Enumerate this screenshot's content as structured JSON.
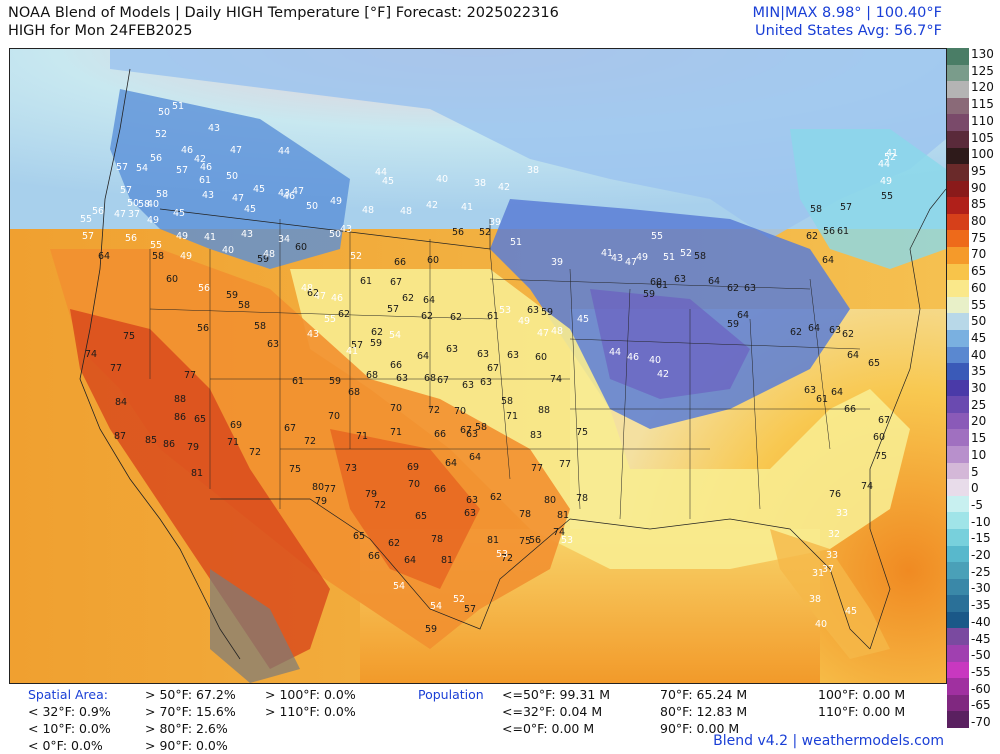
{
  "header": {
    "title_line1": "NOAA Blend of Models | Daily HIGH Temperature [°F] Forecast: 2025022316",
    "title_line2": "HIGH for Mon 24FEB2025",
    "minmax": "MIN|MAX 8.98° | 100.40°F",
    "avg": "United States Avg: 56.7°F"
  },
  "colorbar": {
    "labels": [
      "130",
      "125",
      "120",
      "115",
      "110",
      "105",
      "100",
      "95",
      "90",
      "85",
      "80",
      "75",
      "70",
      "65",
      "60",
      "55",
      "50",
      "45",
      "40",
      "35",
      "30",
      "25",
      "20",
      "15",
      "10",
      "5",
      "0",
      "-5",
      "-10",
      "-15",
      "-20",
      "-25",
      "-30",
      "-35",
      "-40",
      "-45",
      "-50",
      "-55",
      "-60",
      "-65",
      "-70"
    ],
    "colors": [
      "#4a7d66",
      "#7a9c8b",
      "#b4b4b4",
      "#8a6a78",
      "#7a4a6a",
      "#5a2a3a",
      "#2e1a1a",
      "#6a2a2a",
      "#8a1a1a",
      "#b0201a",
      "#d6401a",
      "#ee6a1a",
      "#f59a2a",
      "#f8c44a",
      "#fae88a",
      "#e8f0c8",
      "#b8d8e8",
      "#7ab0e0",
      "#5a88d0",
      "#3a5ab8",
      "#4a3aa8",
      "#6a4ab0",
      "#8a5ab8",
      "#a070c0",
      "#b890cc",
      "#d4b8d8",
      "#e8dcea",
      "#c8f0f0",
      "#a0e4e8",
      "#78d0dc",
      "#58b8cc",
      "#4aa0b8",
      "#3a88a8",
      "#2a7098",
      "#1a5888",
      "#7a4aa0",
      "#a040b0",
      "#c838c0",
      "#a030a0",
      "#802880",
      "#5a2060"
    ]
  },
  "icons": {
    "map": "temperature-map",
    "legend": "color-scale-bar"
  },
  "map_labels": [
    {
      "t": "51",
      "c": "cold"
    },
    {
      "t": "50",
      "c": "cold"
    },
    {
      "t": "52",
      "c": "cold"
    },
    {
      "t": "43",
      "c": "cold"
    },
    {
      "t": "46",
      "c": "cold"
    },
    {
      "t": "42",
      "c": "cold"
    },
    {
      "t": "47",
      "c": "cold"
    },
    {
      "t": "44",
      "c": "cold"
    },
    {
      "t": "46",
      "c": "cold"
    },
    {
      "t": "56",
      "c": "cold"
    },
    {
      "t": "57",
      "c": "cold"
    },
    {
      "t": "54",
      "c": "cold"
    },
    {
      "t": "57",
      "c": "cold"
    },
    {
      "t": "61",
      "c": "cold"
    },
    {
      "t": "50",
      "c": "cold"
    },
    {
      "t": "47",
      "c": "cold"
    },
    {
      "t": "45",
      "c": "cold"
    },
    {
      "t": "43",
      "c": "cold"
    },
    {
      "t": "47",
      "c": "cold"
    },
    {
      "t": "44",
      "c": "cold"
    },
    {
      "t": "45",
      "c": "cold"
    },
    {
      "t": "40",
      "c": "cold"
    },
    {
      "t": "38",
      "c": "cold"
    },
    {
      "t": "42",
      "c": "cold"
    },
    {
      "t": "38",
      "c": "cold"
    },
    {
      "t": "57",
      "c": "cold"
    },
    {
      "t": "58",
      "c": "cold"
    },
    {
      "t": "49",
      "c": "cold"
    },
    {
      "t": "56",
      "c": "cold"
    },
    {
      "t": "47",
      "c": "cold"
    },
    {
      "t": "50",
      "c": "cold"
    },
    {
      "t": "40",
      "c": "cold"
    },
    {
      "t": "45",
      "c": "cold"
    },
    {
      "t": "43",
      "c": "cold"
    },
    {
      "t": "45",
      "c": "cold"
    },
    {
      "t": "46",
      "c": "cold"
    },
    {
      "t": "50",
      "c": "cold"
    },
    {
      "t": "49",
      "c": "cold"
    },
    {
      "t": "43",
      "c": "cold"
    },
    {
      "t": "48",
      "c": "cold"
    },
    {
      "t": "48",
      "c": "cold"
    },
    {
      "t": "42",
      "c": "cold"
    },
    {
      "t": "41",
      "c": "cold"
    },
    {
      "t": "39",
      "c": "cold"
    },
    {
      "t": "55",
      "c": "cold"
    },
    {
      "t": "57",
      "c": "cold"
    },
    {
      "t": "58",
      "c": "cold"
    },
    {
      "t": "37",
      "c": "cold"
    },
    {
      "t": "56",
      "c": "cold"
    },
    {
      "t": "55",
      "c": "cold"
    },
    {
      "t": "49",
      "c": "cold"
    },
    {
      "t": "60",
      "c": ""
    },
    {
      "t": "41",
      "c": "cold"
    },
    {
      "t": "43",
      "c": "cold"
    },
    {
      "t": "34",
      "c": "cold"
    },
    {
      "t": "50",
      "c": "cold"
    },
    {
      "t": "56",
      "c": ""
    },
    {
      "t": "52",
      "c": ""
    },
    {
      "t": "51",
      "c": "cold"
    },
    {
      "t": "59",
      "c": ""
    },
    {
      "t": "64",
      "c": ""
    },
    {
      "t": "58",
      "c": ""
    },
    {
      "t": "49",
      "c": "cold"
    },
    {
      "t": "40",
      "c": "cold"
    },
    {
      "t": "48",
      "c": "cold"
    },
    {
      "t": "60",
      "c": ""
    },
    {
      "t": "52",
      "c": "cold"
    },
    {
      "t": "66",
      "c": ""
    },
    {
      "t": "60",
      "c": ""
    },
    {
      "t": "56",
      "c": "cold"
    },
    {
      "t": "59",
      "c": ""
    },
    {
      "t": "58",
      "c": ""
    },
    {
      "t": "62",
      "c": ""
    },
    {
      "t": "61",
      "c": ""
    },
    {
      "t": "67",
      "c": ""
    },
    {
      "t": "62",
      "c": ""
    },
    {
      "t": "64",
      "c": ""
    },
    {
      "t": "62",
      "c": ""
    },
    {
      "t": "48",
      "c": "cold"
    },
    {
      "t": "47",
      "c": "cold"
    },
    {
      "t": "46",
      "c": "cold"
    },
    {
      "t": "55",
      "c": "cold"
    },
    {
      "t": "57",
      "c": ""
    },
    {
      "t": "62",
      "c": ""
    },
    {
      "t": "61",
      "c": ""
    },
    {
      "t": "59",
      "c": ""
    },
    {
      "t": "63",
      "c": ""
    },
    {
      "t": "75",
      "c": ""
    },
    {
      "t": "56",
      "c": ""
    },
    {
      "t": "58",
      "c": ""
    },
    {
      "t": "43",
      "c": "cold"
    },
    {
      "t": "62",
      "c": ""
    },
    {
      "t": "62",
      "c": ""
    },
    {
      "t": "57",
      "c": ""
    },
    {
      "t": "59",
      "c": ""
    },
    {
      "t": "54",
      "c": "cold"
    },
    {
      "t": "66",
      "c": ""
    },
    {
      "t": "63",
      "c": ""
    },
    {
      "t": "63",
      "c": ""
    },
    {
      "t": "41",
      "c": "cold"
    },
    {
      "t": "63",
      "c": ""
    },
    {
      "t": "64",
      "c": ""
    },
    {
      "t": "63",
      "c": ""
    },
    {
      "t": "67",
      "c": ""
    },
    {
      "t": "63",
      "c": ""
    },
    {
      "t": "60",
      "c": ""
    },
    {
      "t": "74",
      "c": ""
    },
    {
      "t": "77",
      "c": ""
    },
    {
      "t": "77",
      "c": ""
    },
    {
      "t": "61",
      "c": ""
    },
    {
      "t": "59",
      "c": ""
    },
    {
      "t": "68",
      "c": ""
    },
    {
      "t": "68",
      "c": ""
    },
    {
      "t": "68",
      "c": ""
    },
    {
      "t": "67",
      "c": ""
    },
    {
      "t": "63",
      "c": ""
    },
    {
      "t": "63",
      "c": ""
    },
    {
      "t": "58",
      "c": ""
    },
    {
      "t": "74",
      "c": ""
    },
    {
      "t": "84",
      "c": ""
    },
    {
      "t": "88",
      "c": ""
    },
    {
      "t": "86",
      "c": ""
    },
    {
      "t": "65",
      "c": ""
    },
    {
      "t": "69",
      "c": ""
    },
    {
      "t": "67",
      "c": ""
    },
    {
      "t": "70",
      "c": ""
    },
    {
      "t": "70",
      "c": ""
    },
    {
      "t": "72",
      "c": ""
    },
    {
      "t": "70",
      "c": ""
    },
    {
      "t": "67",
      "c": ""
    },
    {
      "t": "58",
      "c": ""
    },
    {
      "t": "71",
      "c": ""
    },
    {
      "t": "88",
      "c": ""
    },
    {
      "t": "87",
      "c": ""
    },
    {
      "t": "85",
      "c": ""
    },
    {
      "t": "86",
      "c": ""
    },
    {
      "t": "79",
      "c": ""
    },
    {
      "t": "71",
      "c": ""
    },
    {
      "t": "72",
      "c": ""
    },
    {
      "t": "72",
      "c": ""
    },
    {
      "t": "71",
      "c": ""
    },
    {
      "t": "71",
      "c": ""
    },
    {
      "t": "66",
      "c": ""
    },
    {
      "t": "63",
      "c": ""
    },
    {
      "t": "83",
      "c": ""
    },
    {
      "t": "75",
      "c": ""
    },
    {
      "t": "81",
      "c": ""
    },
    {
      "t": "75",
      "c": ""
    },
    {
      "t": "73",
      "c": ""
    },
    {
      "t": "69",
      "c": ""
    },
    {
      "t": "64",
      "c": ""
    },
    {
      "t": "64",
      "c": ""
    },
    {
      "t": "77",
      "c": ""
    },
    {
      "t": "77",
      "c": ""
    },
    {
      "t": "80",
      "c": ""
    },
    {
      "t": "77",
      "c": ""
    },
    {
      "t": "79",
      "c": ""
    },
    {
      "t": "70",
      "c": ""
    },
    {
      "t": "66",
      "c": ""
    },
    {
      "t": "63",
      "c": ""
    },
    {
      "t": "62",
      "c": ""
    },
    {
      "t": "80",
      "c": ""
    },
    {
      "t": "78",
      "c": ""
    },
    {
      "t": "79",
      "c": ""
    },
    {
      "t": "72",
      "c": ""
    },
    {
      "t": "65",
      "c": ""
    },
    {
      "t": "63",
      "c": ""
    },
    {
      "t": "78",
      "c": ""
    },
    {
      "t": "81",
      "c": ""
    },
    {
      "t": "74",
      "c": ""
    },
    {
      "t": "65",
      "c": ""
    },
    {
      "t": "62",
      "c": ""
    },
    {
      "t": "78",
      "c": ""
    },
    {
      "t": "81",
      "c": ""
    },
    {
      "t": "75",
      "c": ""
    },
    {
      "t": "66",
      "c": ""
    },
    {
      "t": "64",
      "c": ""
    },
    {
      "t": "81",
      "c": ""
    },
    {
      "t": "72",
      "c": ""
    },
    {
      "t": "53",
      "c": "cold"
    },
    {
      "t": "54",
      "c": "cold"
    },
    {
      "t": "54",
      "c": "cold"
    },
    {
      "t": "52",
      "c": "cold"
    },
    {
      "t": "53",
      "c": "cold"
    },
    {
      "t": "56",
      "c": ""
    },
    {
      "t": "59",
      "c": ""
    },
    {
      "t": "57",
      "c": ""
    },
    {
      "t": "53",
      "c": "cold"
    },
    {
      "t": "49",
      "c": "cold"
    },
    {
      "t": "47",
      "c": "cold"
    },
    {
      "t": "48",
      "c": "cold"
    },
    {
      "t": "45",
      "c": "cold"
    },
    {
      "t": "44",
      "c": "cold"
    },
    {
      "t": "46",
      "c": "cold"
    },
    {
      "t": "40",
      "c": "cold"
    },
    {
      "t": "42",
      "c": "cold"
    },
    {
      "t": "39",
      "c": "cold"
    },
    {
      "t": "41",
      "c": "cold"
    },
    {
      "t": "43",
      "c": "cold"
    },
    {
      "t": "47",
      "c": "cold"
    },
    {
      "t": "49",
      "c": "cold"
    },
    {
      "t": "51",
      "c": "cold"
    },
    {
      "t": "55",
      "c": "cold"
    },
    {
      "t": "52",
      "c": "cold"
    },
    {
      "t": "58",
      "c": ""
    },
    {
      "t": "61",
      "c": ""
    },
    {
      "t": "60",
      "c": ""
    },
    {
      "t": "59",
      "c": ""
    },
    {
      "t": "63",
      "c": ""
    },
    {
      "t": "64",
      "c": ""
    },
    {
      "t": "62",
      "c": ""
    },
    {
      "t": "63",
      "c": ""
    },
    {
      "t": "64",
      "c": ""
    },
    {
      "t": "59",
      "c": ""
    },
    {
      "t": "62",
      "c": ""
    },
    {
      "t": "64",
      "c": ""
    },
    {
      "t": "63",
      "c": ""
    },
    {
      "t": "62",
      "c": ""
    },
    {
      "t": "64",
      "c": ""
    },
    {
      "t": "65",
      "c": ""
    },
    {
      "t": "63",
      "c": ""
    },
    {
      "t": "61",
      "c": ""
    },
    {
      "t": "64",
      "c": ""
    },
    {
      "t": "66",
      "c": ""
    },
    {
      "t": "67",
      "c": ""
    },
    {
      "t": "60",
      "c": ""
    },
    {
      "t": "75",
      "c": ""
    },
    {
      "t": "74",
      "c": ""
    },
    {
      "t": "76",
      "c": ""
    },
    {
      "t": "33",
      "c": "cold"
    },
    {
      "t": "32",
      "c": "cold"
    },
    {
      "t": "33",
      "c": "cold"
    },
    {
      "t": "31",
      "c": "cold"
    },
    {
      "t": "37",
      "c": "cold"
    },
    {
      "t": "38",
      "c": "cold"
    },
    {
      "t": "40",
      "c": "cold"
    },
    {
      "t": "45",
      "c": "cold"
    },
    {
      "t": "41",
      "c": "cold"
    },
    {
      "t": "44",
      "c": "cold"
    },
    {
      "t": "49",
      "c": "cold"
    },
    {
      "t": "52",
      "c": "cold"
    },
    {
      "t": "55",
      "c": ""
    },
    {
      "t": "57",
      "c": ""
    },
    {
      "t": "58",
      "c": ""
    },
    {
      "t": "56",
      "c": ""
    },
    {
      "t": "61",
      "c": ""
    },
    {
      "t": "62",
      "c": ""
    },
    {
      "t": "64",
      "c": ""
    }
  ],
  "stats": {
    "spatial_header": "Spatial Area:",
    "spatial_col1": [
      "< 32°F: 0.9%",
      "< 10°F: 0.0%",
      "< 0°F: 0.0%"
    ],
    "spatial_col2": [
      "> 50°F: 67.2%",
      "> 70°F: 15.6%",
      "> 80°F: 2.6%",
      "> 90°F: 0.0%"
    ],
    "spatial_col3": [
      "> 100°F: 0.0%",
      "> 110°F: 0.0%"
    ],
    "population_header": "Population",
    "pop_col1": [
      "<=50°F: 99.31 M",
      "<=32°F: 0.04 M",
      "<=0°F: 0.00 M"
    ],
    "pop_col2": [
      "70°F: 65.24 M",
      "80°F: 12.83 M",
      "90°F: 0.00 M"
    ],
    "pop_col3": [
      "100°F: 0.00 M",
      "110°F: 0.00 M"
    ]
  },
  "footer": "Blend v4.2 | weathermodels.com"
}
